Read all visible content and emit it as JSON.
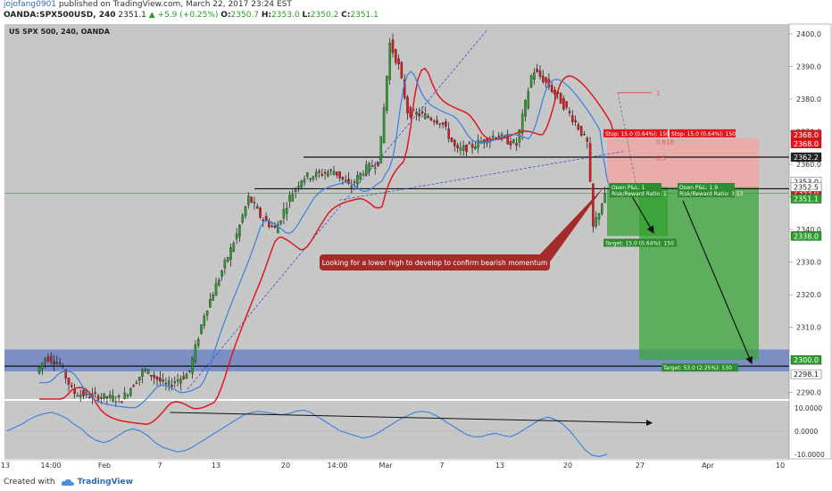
{
  "header": {
    "author": "jojofang0901",
    "published_text": "published on TradingView.com, March 22, 2017 23:24 EST",
    "symbol_line": "OANDA:SPX500USD, 240",
    "last_price": "2351.1",
    "change": "▲ +5.9 (+0.25%)",
    "o_label": "O:",
    "o_value": "2350.7",
    "h_label": "H:",
    "h_value": "2353.0",
    "l_label": "L:",
    "l_value": "2350.2",
    "c_label": "C:",
    "c_value": "2351.1"
  },
  "chart_title": "US SPX 500, 240, OANDA",
  "annotation": "Looking for a lower high to develop to confirm bearish momentum",
  "footer": {
    "created_with": "Created with",
    "brand": "TradingView"
  },
  "colors": {
    "up": "#2e9e2e",
    "down": "#e0181e",
    "ema_red": "#e0181e",
    "ema_blue": "#3a7fe0",
    "panel_bg": "#c7c7c7",
    "zone": "#3e61c3"
  },
  "chart_data": {
    "type": "candlestick",
    "title": "US SPX 500, 240, OANDA",
    "y_axis": {
      "range": [
        2288,
        2403
      ],
      "ticks": [
        2290,
        2300,
        2310,
        2320,
        2330,
        2340,
        2350,
        2360,
        2370,
        2380,
        2390,
        2400
      ]
    },
    "x_axis": {
      "tick_labels": [
        "13",
        "14:00",
        "Feb",
        "7",
        "13",
        "20",
        "14:00",
        "Mar",
        "7",
        "13",
        "20",
        "27",
        "Apr",
        "10"
      ]
    },
    "price_labels": [
      {
        "text": "2368.0",
        "value": 2368.0,
        "color": "#e0181e"
      },
      {
        "text": "2368.0",
        "value": 2368.0,
        "color": "#e0181e"
      },
      {
        "text": "2362.2",
        "value": 2362.2,
        "color": "#222222"
      },
      {
        "text": "2353.0",
        "value": 2353.0,
        "color": "#ffffff"
      },
      {
        "text": "2353.0",
        "value": 2353.0,
        "color": "#e0181e"
      },
      {
        "text": "2352.5",
        "value": 2352.5,
        "color": "#ffffff"
      },
      {
        "text": "2351.1",
        "value": 2351.1,
        "color": "#2e9e2e"
      },
      {
        "text": "2338.0",
        "value": 2338.0,
        "color": "#2e9e2e"
      },
      {
        "text": "2300.0",
        "value": 2300.0,
        "color": "#2e9e2e"
      },
      {
        "text": "2298.1",
        "value": 2298.1,
        "color": "#ffffff"
      }
    ],
    "horizontal_levels": [
      2362.2,
      2352.5,
      2298.1
    ],
    "support_zone": [
      2296.5,
      2303.2
    ],
    "fib_levels": [
      {
        "label": "1",
        "value": 2382.0
      },
      {
        "label": "0.618",
        "value": 2367.0
      },
      {
        "label": "0.5",
        "value": 2362.0
      }
    ],
    "short_position_1": {
      "entry": 2353.0,
      "stop": 2368.0,
      "target": 2338.0,
      "stop_label": "Stop: 15.0 (0.64%): 150",
      "open_label": "Open P&L: 1",
      "rr_label": "Risk/Reward Ratio: 1",
      "target_label": "Target: 15.0 (0.64%): 150"
    },
    "short_position_2": {
      "entry": 2353.0,
      "stop": 2368.0,
      "target": 2300.0,
      "stop_label": "Stop: 15.0 (0.64%): 150",
      "open_label": "Open P&L: 1.9",
      "rr_label": "Risk/Reward Ratio: 3.53",
      "target_label": "Target: 53.0 (2.25%): 530"
    },
    "oscillator": {
      "ticks": [
        10.0,
        0.0,
        -10.0
      ],
      "tick_labels": [
        "10.0000",
        "0.0000",
        "-10.0000"
      ],
      "range": [
        -12,
        13
      ],
      "values": [
        0,
        1.5,
        3,
        5,
        6.5,
        7.5,
        8,
        7,
        5.5,
        3,
        1,
        -2,
        -4,
        -5,
        -4,
        -2,
        0,
        1,
        0,
        -2,
        -5,
        -7,
        -8,
        -9,
        -8.5,
        -7,
        -5,
        -3,
        -1,
        1,
        3,
        5,
        7,
        8,
        8.5,
        8,
        7.5,
        7,
        7.5,
        8.5,
        9,
        8,
        6,
        4,
        2,
        0,
        -1,
        -2,
        -3,
        -2.5,
        -1,
        1,
        3,
        5,
        6.5,
        8,
        8.5,
        8,
        6.5,
        4.5,
        2.5,
        0.5,
        -1.5,
        -2.5,
        -2.5,
        -1.5,
        -1,
        -2,
        -2.5,
        -1,
        1,
        3,
        5,
        6,
        5,
        3,
        0,
        -4,
        -8,
        -10.5,
        -11,
        -10
      ],
      "trendline": [
        [
          22,
          8.0
        ],
        [
          39,
          3.5
        ]
      ]
    }
  }
}
